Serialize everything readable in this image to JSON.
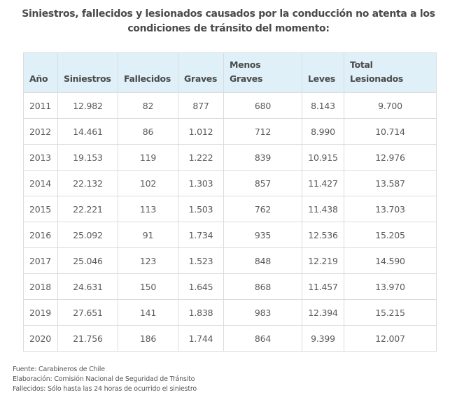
{
  "title": {
    "line1": "Siniestros, fallecidos y lesionados causados por la conducción no atenta a los",
    "line2": "condiciones de tránsito del momento:"
  },
  "colors": {
    "header_bg": "#dff0f8",
    "border": "#dcdcdc",
    "text": "#555555"
  },
  "table": {
    "headers": [
      {
        "line1": "",
        "line2": "Año"
      },
      {
        "line1": "",
        "line2": "Siniestros"
      },
      {
        "line1": "",
        "line2": "Fallecidos"
      },
      {
        "line1": "",
        "line2": "Graves"
      },
      {
        "line1": "Menos",
        "line2": "Graves"
      },
      {
        "line1": "",
        "line2": "Leves"
      },
      {
        "line1": "Total",
        "line2": "Lesionados"
      }
    ],
    "rows": [
      [
        "2011",
        "12.982",
        "82",
        "877",
        "680",
        "8.143",
        "9.700"
      ],
      [
        "2012",
        "14.461",
        "86",
        "1.012",
        "712",
        "8.990",
        "10.714"
      ],
      [
        "2013",
        "19.153",
        "119",
        "1.222",
        "839",
        "10.915",
        "12.976"
      ],
      [
        "2014",
        "22.132",
        "102",
        "1.303",
        "857",
        "11.427",
        "13.587"
      ],
      [
        "2015",
        "22.221",
        "113",
        "1.503",
        "762",
        "11.438",
        "13.703"
      ],
      [
        "2016",
        "25.092",
        "91",
        "1.734",
        "935",
        "12.536",
        "15.205"
      ],
      [
        "2017",
        "25.046",
        "123",
        "1.523",
        "848",
        "12.219",
        "14.590"
      ],
      [
        "2018",
        "24.631",
        "150",
        "1.645",
        "868",
        "11.457",
        "13.970"
      ],
      [
        "2019",
        "27.651",
        "141",
        "1.838",
        "983",
        "12.394",
        "15.215"
      ],
      [
        "2020",
        "21.756",
        "186",
        "1.744",
        "864",
        "9.399",
        "12.007"
      ]
    ]
  },
  "notes": [
    "Fuente: Carabineros de Chile",
    "Elaboración: Comisión Nacional de Seguridad de Tránsito",
    "Fallecidos: Sólo hasta las 24 horas de ocurrido el siniestro"
  ]
}
